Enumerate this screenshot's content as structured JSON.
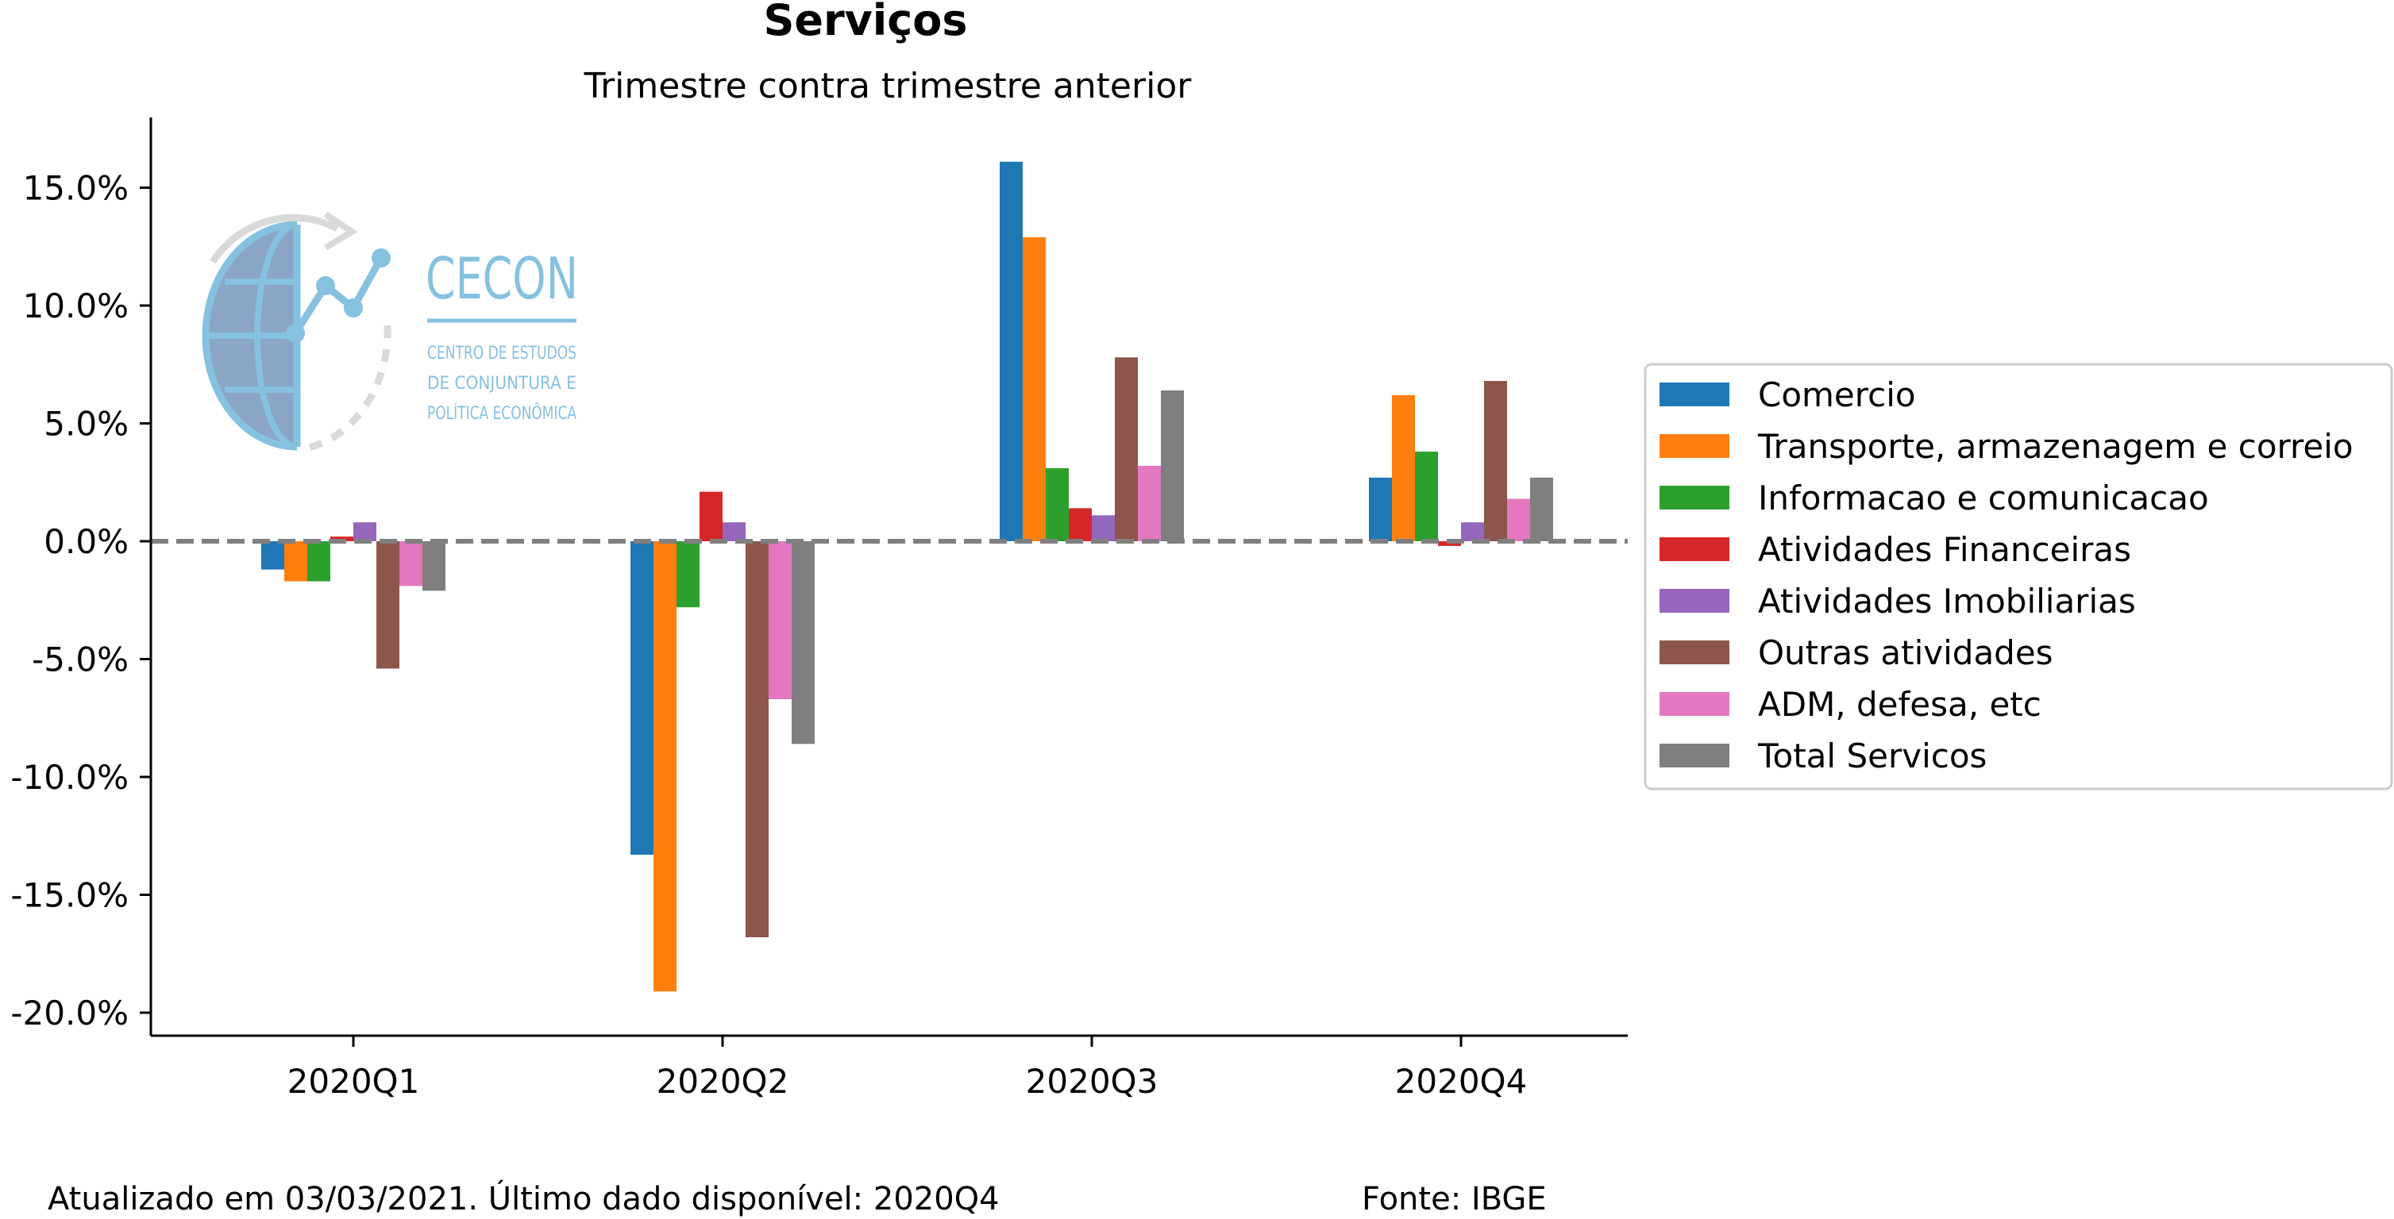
{
  "chart_data": {
    "type": "bar",
    "title": "Serviços",
    "subtitle": "Trimestre contra trimestre anterior",
    "categories": [
      "2020Q1",
      "2020Q2",
      "2020Q3",
      "2020Q4"
    ],
    "ylim": [
      -20.8,
      18.0
    ],
    "yticks": [
      15.0,
      10.0,
      5.0,
      0.0,
      -5.0,
      -10.0,
      -15.0,
      -20.0
    ],
    "ytick_labels": [
      "15.0%",
      "10.0%",
      "5.0%",
      "0.0%",
      "-5.0%",
      "-10.0%",
      "-15.0%",
      "-20.0%"
    ],
    "grid": false,
    "zero_line": {
      "value": 0,
      "style": "dashed",
      "color": "#808080"
    },
    "legend": {
      "position": "right"
    },
    "series": [
      {
        "name": "Comercio",
        "color": "#1f77b4",
        "values": [
          -1.2,
          -13.3,
          16.1,
          2.7
        ]
      },
      {
        "name": "Transporte, armazenagem e correio",
        "color": "#ff7f0e",
        "values": [
          -1.7,
          -19.1,
          12.9,
          6.2
        ]
      },
      {
        "name": "Informacao e comunicacao",
        "color": "#2ca02c",
        "values": [
          -1.7,
          -2.8,
          3.1,
          3.8
        ]
      },
      {
        "name": "Atividades Financeiras",
        "color": "#d62728",
        "values": [
          0.2,
          2.1,
          1.4,
          -0.2
        ]
      },
      {
        "name": "Atividades Imobiliarias",
        "color": "#9467bd",
        "values": [
          0.8,
          0.8,
          1.1,
          0.8
        ]
      },
      {
        "name": "Outras atividades",
        "color": "#8c564b",
        "values": [
          -5.4,
          -16.8,
          7.8,
          6.8
        ]
      },
      {
        "name": "ADM, defesa, etc",
        "color": "#e377c2",
        "values": [
          -1.9,
          -6.7,
          3.2,
          1.8
        ]
      },
      {
        "name": "Total Servicos",
        "color": "#7f7f7f",
        "values": [
          -2.1,
          -8.6,
          6.4,
          2.7
        ]
      }
    ]
  },
  "logo": {
    "name": "CECON",
    "lines": [
      "CENTRO DE ESTUDOS",
      "DE CONJUNTURA E",
      "POLÍTICA ECONÔMICA"
    ]
  },
  "footer": {
    "left": "Atualizado em 03/03/2021. Último dado disponível: 2020Q4",
    "right": "Fonte: IBGE"
  }
}
